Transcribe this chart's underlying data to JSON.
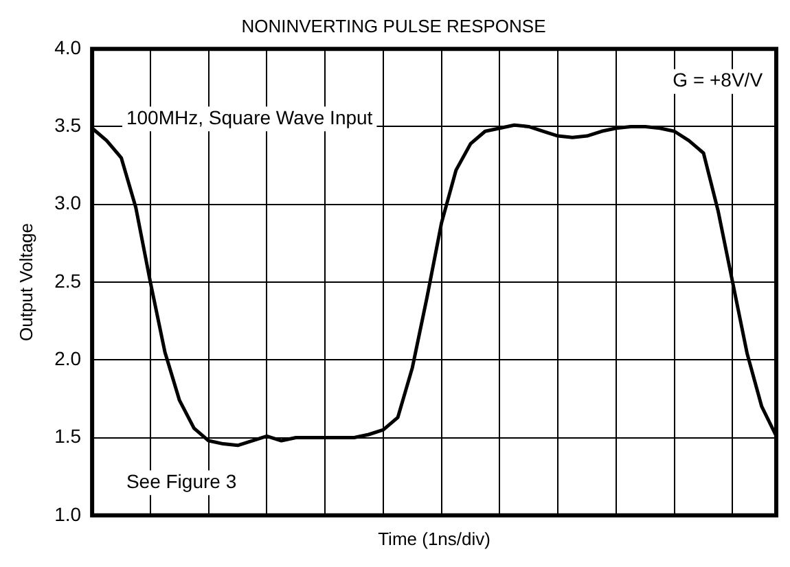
{
  "chart_data": {
    "type": "line",
    "title": "NONINVERTING PULSE RESPONSE",
    "xlabel": "Time (1ns/div)",
    "ylabel": "Output Voltage",
    "annotations": [
      "100MHz, Square Wave Input",
      "G = +8V/V",
      "See Figure 3"
    ],
    "categories": [
      null,
      null,
      null,
      null,
      null,
      null,
      null,
      null,
      null,
      null,
      null,
      null,
      null,
      null,
      null,
      null,
      null,
      null,
      null,
      null,
      null,
      null,
      null,
      null,
      null,
      null,
      null,
      null,
      null,
      null,
      null,
      null,
      null,
      null,
      null,
      null,
      null,
      null,
      null,
      null,
      null,
      null,
      null,
      null,
      null,
      null,
      null,
      null
    ],
    "series": [
      {
        "color": "#000000",
        "values": [
          3.49,
          3.41,
          3.3,
          2.98,
          2.5,
          2.05,
          1.74,
          1.56,
          1.48,
          1.46,
          1.45,
          1.48,
          1.51,
          1.48,
          1.5,
          1.5,
          1.5,
          1.5,
          1.5,
          1.52,
          1.55,
          1.63,
          1.95,
          2.4,
          2.88,
          3.22,
          3.39,
          3.47,
          3.49,
          3.51,
          3.5,
          3.47,
          3.44,
          3.43,
          3.44,
          3.47,
          3.49,
          3.5,
          3.5,
          3.49,
          3.47,
          3.41,
          3.33,
          2.96,
          2.5,
          2.04,
          1.7,
          1.51
        ]
      }
    ],
    "ylim": [
      1,
      4
    ],
    "yticks": [
      {
        "value": 1,
        "label": "1.0"
      },
      1.5,
      {
        "value": 2,
        "label": "2.0"
      },
      2.5,
      {
        "value": 3,
        "label": "3.0"
      },
      3.5,
      {
        "value": 4,
        "label": "4.0"
      }
    ],
    "tick_labels": "y",
    "grid": true,
    "legend": false,
    "marker": "none",
    "line_style": "solid"
  }
}
